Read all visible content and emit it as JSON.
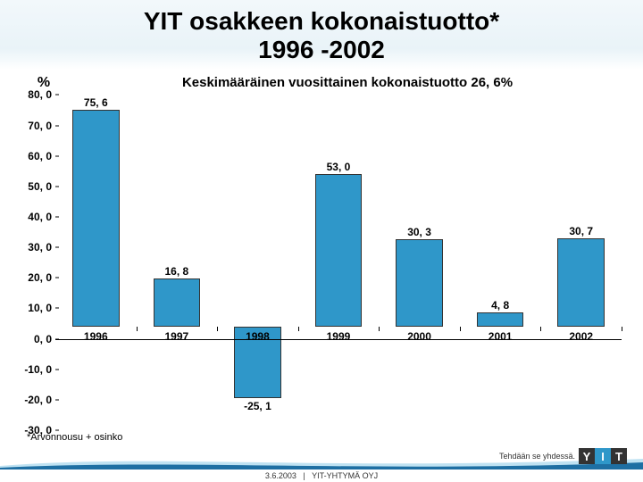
{
  "header": {
    "title_line1": "YIT osakkeen kokonaistuotto*",
    "title_line2": "1996 -2002"
  },
  "chart": {
    "type": "bar",
    "y_label": "%",
    "subtitle": "Keskimääräinen vosittainen kokonaistuotto 26, 6%",
    "subtitle_correct": "Keskimääräinen vuosittainen kokonaistuotto 26, 6%",
    "ylim": [
      -30,
      80
    ],
    "ytick_step": 10,
    "yticks": [
      {
        "v": 80,
        "label": "80, 0"
      },
      {
        "v": 70,
        "label": "70, 0"
      },
      {
        "v": 60,
        "label": "60, 0"
      },
      {
        "v": 50,
        "label": "50, 0"
      },
      {
        "v": 40,
        "label": "40, 0"
      },
      {
        "v": 30,
        "label": "30, 0"
      },
      {
        "v": 20,
        "label": "20, 0"
      },
      {
        "v": 10,
        "label": "10, 0"
      },
      {
        "v": 0,
        "label": "0, 0"
      },
      {
        "v": -10,
        "label": "-10, 0"
      },
      {
        "v": -20,
        "label": "-20, 0"
      },
      {
        "v": -30,
        "label": "-30, 0"
      }
    ],
    "categories": [
      "1996",
      "1997",
      "1998",
      "1999",
      "2000",
      "2001",
      "2002"
    ],
    "values": [
      75.6,
      16.8,
      -25.1,
      53.0,
      30.3,
      4.8,
      30.7
    ],
    "value_labels": [
      "75, 6",
      "16, 8",
      "-25, 1",
      "53, 0",
      "30, 3",
      "4, 8",
      "30, 7"
    ],
    "bar_color": "#2f97c9",
    "bar_border": "#333333",
    "axis_color": "#000000",
    "background_color": "#ffffff",
    "label_fontsize": 12,
    "title_fontsize": 28
  },
  "footnote": "*Arvonnousu + osinko",
  "footer": {
    "motto": "Tehdään se yhdessä.",
    "logo_letters": [
      "Y",
      "I",
      "T"
    ],
    "logo_colors": [
      "#333333",
      "#2f97c9",
      "#333333"
    ],
    "date": "3.6.2003",
    "sep": "|",
    "company": "YIT-YHTYMÄ OYJ",
    "wave_dark": "#1e6fa3",
    "wave_light": "#bfe2f2"
  }
}
